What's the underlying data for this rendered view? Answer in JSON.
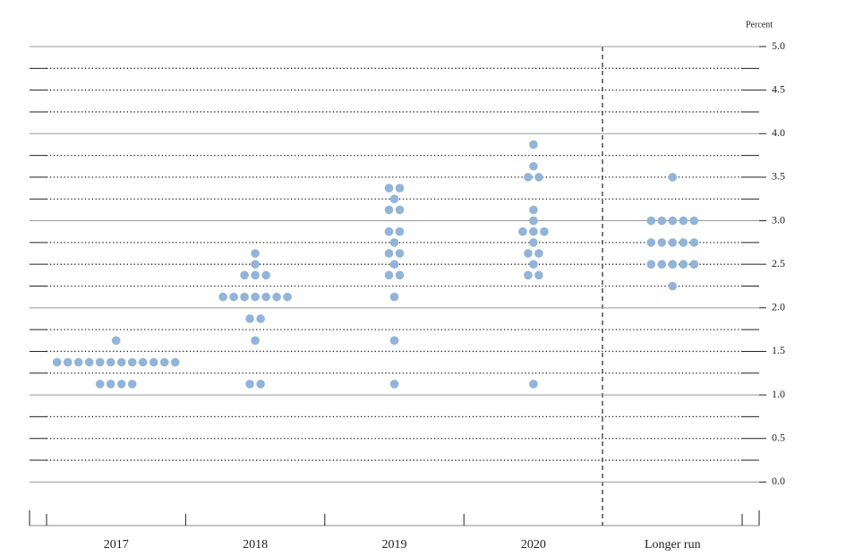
{
  "chart_data": {
    "type": "dot",
    "y_label": "Percent",
    "categories": [
      "2017",
      "2018",
      "2019",
      "2020",
      "Longer run"
    ],
    "values": [
      [
        1.625,
        1.375,
        1.375,
        1.375,
        1.375,
        1.375,
        1.375,
        1.375,
        1.375,
        1.375,
        1.375,
        1.375,
        1.375,
        1.125,
        1.125,
        1.125,
        1.125
      ],
      [
        2.625,
        2.5,
        2.375,
        2.375,
        2.375,
        2.125,
        2.125,
        2.125,
        2.125,
        2.125,
        2.125,
        2.125,
        1.875,
        1.875,
        1.625,
        1.125,
        1.125
      ],
      [
        3.375,
        3.375,
        3.25,
        3.125,
        3.125,
        2.875,
        2.875,
        2.75,
        2.625,
        2.625,
        2.5,
        2.375,
        2.375,
        2.125,
        1.625,
        1.125
      ],
      [
        3.875,
        3.625,
        3.5,
        3.5,
        3.125,
        3.0,
        2.875,
        2.875,
        2.875,
        2.75,
        2.625,
        2.625,
        2.5,
        2.375,
        2.375,
        1.125
      ],
      [
        3.5,
        3.0,
        3.0,
        3.0,
        3.0,
        3.0,
        2.75,
        2.75,
        2.75,
        2.75,
        2.75,
        2.5,
        2.5,
        2.5,
        2.5,
        2.5,
        2.25
      ]
    ],
    "color": "#92b4d8",
    "ylim": [
      -0.5,
      5.0
    ],
    "yticks": [
      {
        "value": 0,
        "label": "0.0"
      },
      {
        "value": 0.5,
        "label": "0.5"
      },
      {
        "value": 1,
        "label": "1.0"
      },
      {
        "value": 1.5,
        "label": "1.5"
      },
      {
        "value": 2,
        "label": "2.0"
      },
      {
        "value": 2.5,
        "label": "2.5"
      },
      {
        "value": 3,
        "label": "3.0"
      },
      {
        "value": 3.5,
        "label": "3.5"
      },
      {
        "value": 4,
        "label": "4.0"
      },
      {
        "value": 4.5,
        "label": "4.5"
      },
      {
        "value": 5,
        "label": "5.0"
      }
    ],
    "minor_yticks": [
      0.25,
      0.75,
      1.25,
      1.75,
      2.25,
      2.75,
      3.25,
      3.75,
      4.25,
      4.75
    ],
    "grid": true
  }
}
